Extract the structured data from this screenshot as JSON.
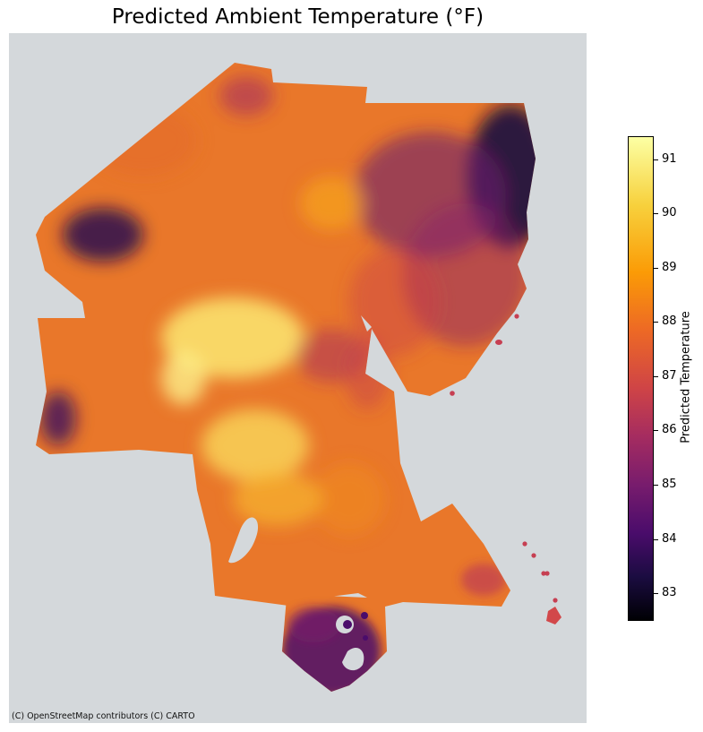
{
  "title": "Predicted Ambient Temperature (°F)",
  "attribution": "(C) OpenStreetMap contributors (C) CARTO",
  "colorbar": {
    "label": "Predicted Temperature",
    "min": 82.5,
    "max": 91.4,
    "ticks": [
      "83",
      "84",
      "85",
      "86",
      "87",
      "88",
      "89",
      "90",
      "91"
    ],
    "colormap": "inferno"
  },
  "colors": {
    "basemap": "#d4d8db",
    "cool": "#2a0a4a",
    "warm": "#ef7d22",
    "hot": "#f9e36a"
  }
}
